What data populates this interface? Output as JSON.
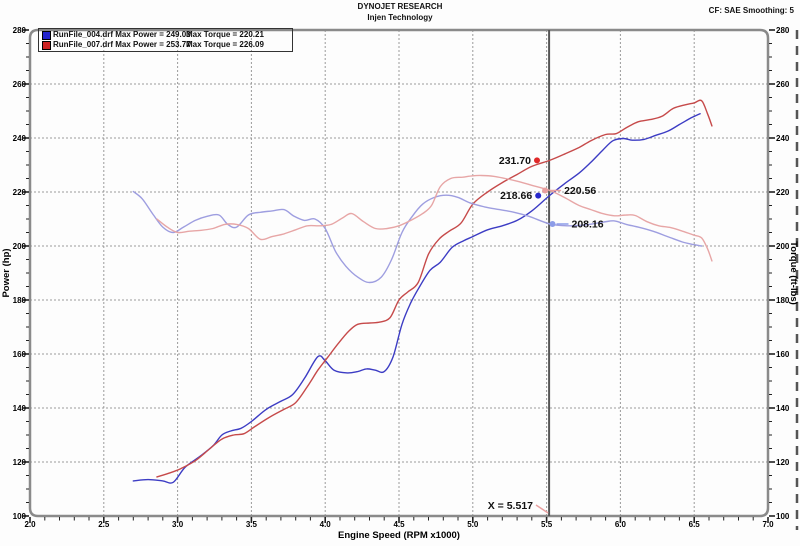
{
  "header": {
    "title": "DYNOJET RESEARCH",
    "subtitle": "Injen Technology",
    "corner": "CF: SAE  Smoothing: 5"
  },
  "legend": {
    "rows": [
      {
        "file_and_power": "RunFile_004.drf Max Power = 249.03",
        "torque": "Max Torque = 220.21",
        "swatch_color": "#2222cc"
      },
      {
        "file_and_power": "RunFile_007.drf Max Power = 253.77",
        "torque": "Max Torque = 226.09",
        "swatch_color": "#cc2222"
      }
    ]
  },
  "axes": {
    "x_label": "Engine Speed (RPM x1000)",
    "y_left_label": "Power (hp)",
    "y_right_label": "Torque (ft-lbs)",
    "x_ticks": [
      "2.0",
      "2.5",
      "3.0",
      "3.5",
      "4.0",
      "4.5",
      "5.0",
      "5.5",
      "6.0",
      "6.5",
      "7.0"
    ],
    "y_ticks": [
      "280",
      "260",
      "240",
      "220",
      "200",
      "180",
      "160",
      "140",
      "120",
      "100"
    ],
    "scale": {
      "x_min": 2.0,
      "x_max": 7.0,
      "x_minor": 0.1,
      "x_major": 0.5,
      "y_min": 100,
      "y_max": 280,
      "y_minor": 5,
      "y_major": 20
    }
  },
  "colors": {
    "power_blue": "#3c3cc4",
    "power_red": "#c64a4a",
    "torque_blue": "#9e9ee0",
    "torque_red": "#e7a6a6",
    "grid": "#9a9a9a",
    "frame": "#8a8a8a",
    "tick": "#222222",
    "cursor_line": "#555555",
    "leader_pink": "#e9a0a0",
    "leader_blue": "#8c9ce8"
  },
  "annotations": {
    "red_power_label": "231.70",
    "blue_power_label": "218.66",
    "red_torque_label": "220.56",
    "blue_torque_label": "208.16",
    "cursor_label": "X = 5.517"
  },
  "chart_data": {
    "type": "line",
    "title": "DYNOJET RESEARCH",
    "subtitle": "Injen Technology",
    "xlabel": "Engine Speed (RPM x1000)",
    "ylabel_left": "Power (hp)",
    "ylabel_right": "Torque (ft-lbs)",
    "xlim": [
      2.0,
      7.0
    ],
    "ylim": [
      100,
      280
    ],
    "grid": true,
    "legend_position": "top-left",
    "cursor": {
      "label": "X = 5.517",
      "x": 5.517
    },
    "series": [
      {
        "name": "RunFile_004.drf Power",
        "unit": "hp",
        "axis": "left",
        "color": "#3c3cc4",
        "max_label": "Max Power = 249.03",
        "points": [
          [
            2.7,
            113
          ],
          [
            2.8,
            113.5
          ],
          [
            2.9,
            113
          ],
          [
            2.97,
            112.5
          ],
          [
            3.05,
            118
          ],
          [
            3.15,
            122
          ],
          [
            3.24,
            126
          ],
          [
            3.3,
            130
          ],
          [
            3.36,
            131.5
          ],
          [
            3.43,
            132.5
          ],
          [
            3.5,
            135
          ],
          [
            3.6,
            139.5
          ],
          [
            3.7,
            142.5
          ],
          [
            3.78,
            145
          ],
          [
            3.86,
            151
          ],
          [
            3.95,
            159
          ],
          [
            4.0,
            157.5
          ],
          [
            4.06,
            154
          ],
          [
            4.15,
            153
          ],
          [
            4.22,
            153.5
          ],
          [
            4.28,
            154.5
          ],
          [
            4.34,
            154
          ],
          [
            4.4,
            153.5
          ],
          [
            4.46,
            159
          ],
          [
            4.52,
            171
          ],
          [
            4.58,
            179
          ],
          [
            4.64,
            185
          ],
          [
            4.71,
            191
          ],
          [
            4.78,
            194
          ],
          [
            4.86,
            199.5
          ],
          [
            4.94,
            202
          ],
          [
            5.0,
            203.5
          ],
          [
            5.1,
            206
          ],
          [
            5.2,
            207.5
          ],
          [
            5.3,
            209.5
          ],
          [
            5.4,
            213
          ],
          [
            5.52,
            218.7
          ],
          [
            5.62,
            223
          ],
          [
            5.72,
            227
          ],
          [
            5.8,
            231
          ],
          [
            5.88,
            235.5
          ],
          [
            5.95,
            239
          ],
          [
            6.02,
            239.8
          ],
          [
            6.08,
            239.2
          ],
          [
            6.16,
            239.5
          ],
          [
            6.24,
            241
          ],
          [
            6.32,
            242.5
          ],
          [
            6.4,
            245
          ],
          [
            6.48,
            247.5
          ],
          [
            6.54,
            249.0
          ]
        ]
      },
      {
        "name": "RunFile_007.drf Power",
        "unit": "hp",
        "axis": "left",
        "color": "#c64a4a",
        "max_label": "Max Power = 253.77",
        "points": [
          [
            2.86,
            114.5
          ],
          [
            2.95,
            116
          ],
          [
            3.02,
            117.5
          ],
          [
            3.12,
            120.5
          ],
          [
            3.22,
            125
          ],
          [
            3.3,
            128.5
          ],
          [
            3.38,
            130
          ],
          [
            3.45,
            130.5
          ],
          [
            3.52,
            133
          ],
          [
            3.62,
            136.5
          ],
          [
            3.72,
            139.5
          ],
          [
            3.8,
            142
          ],
          [
            3.88,
            148
          ],
          [
            3.95,
            154
          ],
          [
            4.02,
            159
          ],
          [
            4.09,
            164
          ],
          [
            4.16,
            168.5
          ],
          [
            4.22,
            171
          ],
          [
            4.3,
            171.5
          ],
          [
            4.37,
            171.8
          ],
          [
            4.44,
            173.5
          ],
          [
            4.5,
            180
          ],
          [
            4.56,
            183
          ],
          [
            4.63,
            186.5
          ],
          [
            4.7,
            197
          ],
          [
            4.77,
            202.5
          ],
          [
            4.84,
            205.5
          ],
          [
            4.92,
            208.5
          ],
          [
            5.0,
            215.5
          ],
          [
            5.1,
            220
          ],
          [
            5.2,
            223.5
          ],
          [
            5.3,
            226.5
          ],
          [
            5.4,
            229.5
          ],
          [
            5.52,
            231.7
          ],
          [
            5.62,
            234
          ],
          [
            5.72,
            236.5
          ],
          [
            5.8,
            239
          ],
          [
            5.9,
            241.3
          ],
          [
            5.97,
            241.6
          ],
          [
            6.04,
            243.8
          ],
          [
            6.12,
            246
          ],
          [
            6.2,
            246.8
          ],
          [
            6.28,
            248
          ],
          [
            6.36,
            251
          ],
          [
            6.44,
            252.3
          ],
          [
            6.5,
            253
          ],
          [
            6.55,
            253.8
          ],
          [
            6.59,
            249
          ],
          [
            6.62,
            244.5
          ]
        ]
      },
      {
        "name": "RunFile_004.drf Torque",
        "unit": "ft-lbs",
        "axis": "right",
        "color": "#9e9ee0",
        "max_label": "Max Torque = 220.21",
        "points": [
          [
            2.7,
            220.2
          ],
          [
            2.76,
            217.5
          ],
          [
            2.83,
            212
          ],
          [
            2.9,
            207
          ],
          [
            2.97,
            205
          ],
          [
            3.04,
            207
          ],
          [
            3.12,
            209.5
          ],
          [
            3.2,
            211
          ],
          [
            3.28,
            211.5
          ],
          [
            3.34,
            208
          ],
          [
            3.4,
            207
          ],
          [
            3.48,
            211.5
          ],
          [
            3.56,
            212.5
          ],
          [
            3.64,
            213
          ],
          [
            3.72,
            213.5
          ],
          [
            3.79,
            211
          ],
          [
            3.86,
            209.5
          ],
          [
            3.93,
            210
          ],
          [
            4.0,
            206.5
          ],
          [
            4.07,
            198
          ],
          [
            4.14,
            192.5
          ],
          [
            4.22,
            188.5
          ],
          [
            4.3,
            186.5
          ],
          [
            4.38,
            188.5
          ],
          [
            4.45,
            195
          ],
          [
            4.52,
            205
          ],
          [
            4.59,
            211
          ],
          [
            4.66,
            215.5
          ],
          [
            4.74,
            218
          ],
          [
            4.82,
            218.8
          ],
          [
            4.9,
            218
          ],
          [
            4.98,
            216
          ],
          [
            5.08,
            214.5
          ],
          [
            5.18,
            213.5
          ],
          [
            5.28,
            212.5
          ],
          [
            5.38,
            211
          ],
          [
            5.52,
            208.2
          ],
          [
            5.64,
            207.5
          ],
          [
            5.76,
            207.8
          ],
          [
            5.88,
            208.8
          ],
          [
            5.96,
            209.3
          ],
          [
            6.04,
            208
          ],
          [
            6.12,
            207
          ],
          [
            6.22,
            205.5
          ],
          [
            6.32,
            203.5
          ],
          [
            6.42,
            201.5
          ],
          [
            6.5,
            200.5
          ],
          [
            6.55,
            200
          ]
        ]
      },
      {
        "name": "RunFile_007.drf Torque",
        "unit": "ft-lbs",
        "axis": "right",
        "color": "#e7a6a6",
        "max_label": "Max Torque = 226.09",
        "points": [
          [
            2.86,
            210
          ],
          [
            2.93,
            207
          ],
          [
            3.0,
            205
          ],
          [
            3.08,
            205.5
          ],
          [
            3.16,
            205.8
          ],
          [
            3.24,
            206.5
          ],
          [
            3.32,
            208
          ],
          [
            3.4,
            208
          ],
          [
            3.48,
            206.5
          ],
          [
            3.56,
            202.5
          ],
          [
            3.64,
            203.5
          ],
          [
            3.72,
            204.5
          ],
          [
            3.8,
            206
          ],
          [
            3.88,
            207.5
          ],
          [
            3.96,
            207.5
          ],
          [
            4.04,
            208
          ],
          [
            4.12,
            210.5
          ],
          [
            4.18,
            212
          ],
          [
            4.26,
            209
          ],
          [
            4.34,
            206.5
          ],
          [
            4.42,
            206.5
          ],
          [
            4.5,
            207.5
          ],
          [
            4.58,
            209.5
          ],
          [
            4.66,
            212
          ],
          [
            4.72,
            215
          ],
          [
            4.78,
            222
          ],
          [
            4.85,
            225
          ],
          [
            4.93,
            225.5
          ],
          [
            5.0,
            226
          ],
          [
            5.06,
            226.1
          ],
          [
            5.14,
            225.8
          ],
          [
            5.22,
            225
          ],
          [
            5.3,
            224
          ],
          [
            5.4,
            222.5
          ],
          [
            5.52,
            220.6
          ],
          [
            5.62,
            218
          ],
          [
            5.72,
            215
          ],
          [
            5.8,
            213.5
          ],
          [
            5.88,
            212
          ],
          [
            5.96,
            211.2
          ],
          [
            6.04,
            211.5
          ],
          [
            6.1,
            211.3
          ],
          [
            6.18,
            209
          ],
          [
            6.26,
            207.5
          ],
          [
            6.34,
            206.8
          ],
          [
            6.42,
            205.5
          ],
          [
            6.5,
            204
          ],
          [
            6.55,
            203
          ],
          [
            6.59,
            199
          ],
          [
            6.62,
            194.5
          ]
        ]
      }
    ],
    "markers": [
      {
        "id": "red-power-marker",
        "label": "231.70",
        "rpm": 5.435,
        "value": 231.7,
        "color": "#e02828",
        "side": "left"
      },
      {
        "id": "blue-power-marker",
        "label": "218.66",
        "rpm": 5.443,
        "value": 218.66,
        "color": "#2828cc",
        "side": "left"
      },
      {
        "id": "red-torque-marker",
        "label": "220.56",
        "rpm": 5.49,
        "value": 220.56,
        "color": "#e9a0a0",
        "side": "right"
      },
      {
        "id": "blue-torque-marker",
        "label": "208.16",
        "rpm": 5.54,
        "value": 208.16,
        "color": "#8c9ce8",
        "side": "right"
      }
    ]
  }
}
